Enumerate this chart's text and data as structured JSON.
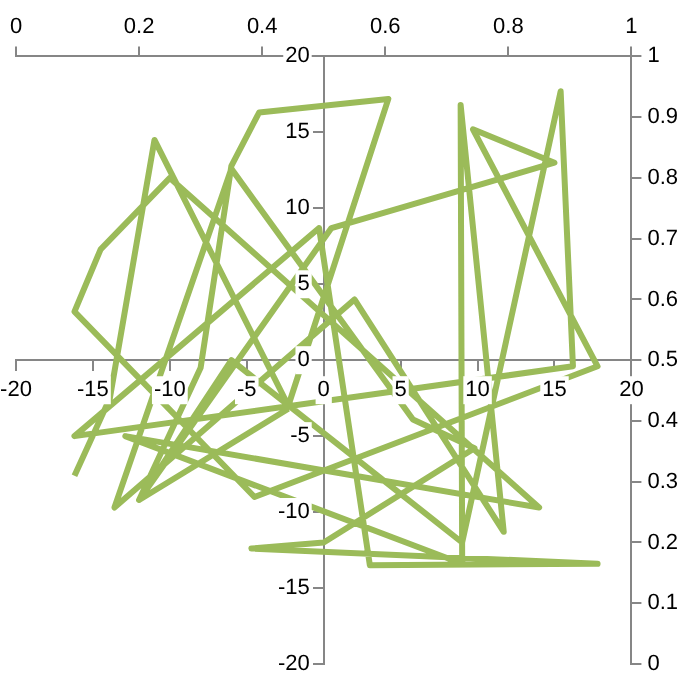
{
  "chart_data": {
    "type": "line",
    "marker": "none",
    "grid": false,
    "legend": false,
    "x": [
      -16.2,
      -13.9,
      -11,
      -2.3,
      4.2,
      -4.2,
      -6,
      -8,
      -12,
      0.5,
      15,
      9.7,
      17.8,
      -4.5,
      -16.2,
      -14.5,
      -10,
      14,
      -12.9,
      9,
      8.9,
      11.7,
      2,
      -13.6,
      -6,
      5.8,
      9.8,
      0,
      -4.7,
      17.8,
      3,
      -0.3,
      -16.2,
      16.2,
      15.4,
      9,
      -6,
      -12,
      -2.3
    ],
    "values": [
      -7.6,
      -2.5,
      14.5,
      -3,
      17.2,
      16.3,
      12.8,
      -0.5,
      -9.2,
      8.7,
      13,
      15.2,
      -0.4,
      -9,
      3.2,
      7.3,
      12,
      -9.7,
      -5,
      -13.4,
      16.8,
      -11.3,
      4,
      -9.7,
      12.6,
      -3.9,
      -5.8,
      -12,
      -12.4,
      -13.4,
      -13.5,
      8.7,
      -5,
      -0.4,
      17.7,
      -12,
      0,
      -9.2,
      -3.2
    ],
    "color": "#9bbb59",
    "xlim": [
      -20,
      20
    ],
    "xticks": [
      -20,
      -15,
      -10,
      -5,
      0,
      5,
      10,
      15,
      20
    ],
    "ylim": [
      -20,
      20
    ],
    "yticks": [
      -20,
      -15,
      -10,
      -5,
      0,
      5,
      10,
      15,
      20
    ],
    "x2lim": [
      0,
      1
    ],
    "x2ticks": [
      0,
      0.2,
      0.4,
      0.6,
      0.8,
      1
    ],
    "y2lim": [
      0,
      1
    ],
    "y2ticks": [
      0,
      0.1,
      0.2,
      0.3,
      0.4,
      0.5,
      0.6,
      0.7,
      0.8,
      0.9,
      1
    ]
  }
}
